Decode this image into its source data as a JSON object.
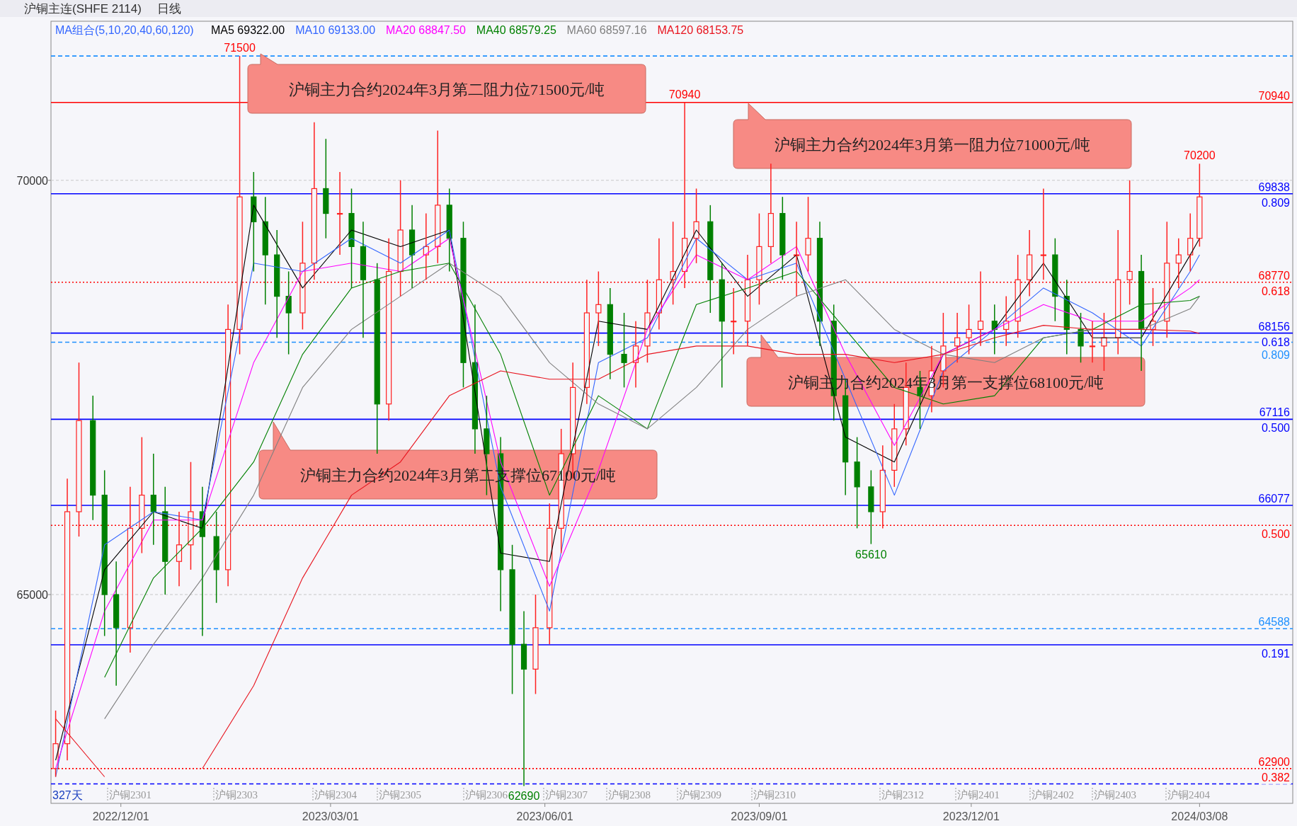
{
  "chart_data": {
    "type": "candlestick",
    "title": "沪铜主连(SHFE 2114)",
    "subtitle": "日线",
    "legend_title": "MA组合(5,10,20,40,60,120)",
    "legend": "top",
    "grid": "y",
    "xlim": [
      "2022-11-01",
      "2024-04-17"
    ],
    "ylim": [
      62480,
      71920
    ],
    "xticks": [
      {
        "value": "2022-12-01",
        "label": "2022/12/01"
      },
      {
        "value": "2023-03-01",
        "label": "2023/03/01"
      },
      {
        "value": "2023-06-01",
        "label": "2023/06/01"
      },
      {
        "value": "2023-09-01",
        "label": "2023/09/01"
      },
      {
        "value": "2023-12-01",
        "label": "2023/12/01"
      },
      {
        "value": "2024-03-08",
        "label": "2024/03/08"
      }
    ],
    "yticks": [
      65000,
      70000
    ],
    "x": [
      "2022-11-03",
      "2022-11-08",
      "2022-11-13",
      "2022-11-19",
      "2022-11-24",
      "2022-11-29",
      "2022-12-05",
      "2022-12-10",
      "2022-12-15",
      "2022-12-20",
      "2022-12-26",
      "2022-12-31",
      "2023-01-05",
      "2023-01-11",
      "2023-01-16",
      "2023-01-21",
      "2023-01-27",
      "2023-02-01",
      "2023-02-06",
      "2023-02-11",
      "2023-02-17",
      "2023-02-22",
      "2023-02-27",
      "2023-03-05",
      "2023-03-10",
      "2023-03-15",
      "2023-03-21",
      "2023-03-26",
      "2023-03-31",
      "2023-04-05",
      "2023-04-11",
      "2023-04-16",
      "2023-04-21",
      "2023-04-27",
      "2023-05-02",
      "2023-05-07",
      "2023-05-13",
      "2023-05-18",
      "2023-05-23",
      "2023-05-28",
      "2023-06-03",
      "2023-06-08",
      "2023-06-13",
      "2023-06-19",
      "2023-06-24",
      "2023-06-29",
      "2023-07-05",
      "2023-07-10",
      "2023-07-15",
      "2023-07-20",
      "2023-07-26",
      "2023-07-31",
      "2023-08-05",
      "2023-08-11",
      "2023-08-16",
      "2023-08-21",
      "2023-08-27",
      "2023-09-01",
      "2023-09-06",
      "2023-09-11",
      "2023-09-17",
      "2023-09-22",
      "2023-09-27",
      "2023-10-03",
      "2023-10-08",
      "2023-10-13",
      "2023-10-19",
      "2023-10-24",
      "2023-10-29",
      "2023-11-03",
      "2023-11-09",
      "2023-11-14",
      "2023-11-19",
      "2023-11-25",
      "2023-11-30",
      "2023-12-05",
      "2023-12-11",
      "2023-12-16",
      "2023-12-21",
      "2023-12-26",
      "2024-01-01",
      "2024-01-06",
      "2024-01-11",
      "2024-01-17",
      "2024-01-22",
      "2024-01-27",
      "2024-02-02",
      "2024-02-07",
      "2024-02-12",
      "2024-02-17",
      "2024-02-23",
      "2024-02-28",
      "2024-03-04",
      "2024-03-08"
    ],
    "ohlc": [
      [
        62900,
        63600,
        62800,
        63200
      ],
      [
        63200,
        66400,
        63000,
        66000
      ],
      [
        66000,
        67800,
        65700,
        67100
      ],
      [
        67100,
        67400,
        65900,
        66200
      ],
      [
        66200,
        66500,
        64500,
        65000
      ],
      [
        65000,
        65400,
        63900,
        64600
      ],
      [
        64600,
        66300,
        64300,
        65800
      ],
      [
        65800,
        66900,
        65500,
        66200
      ],
      [
        66200,
        66700,
        65600,
        66000
      ],
      [
        66000,
        66300,
        65000,
        65400
      ],
      [
        65400,
        66000,
        65100,
        65600
      ],
      [
        65600,
        66600,
        65300,
        66000
      ],
      [
        66000,
        66300,
        64500,
        65700
      ],
      [
        65700,
        66000,
        64900,
        65300
      ],
      [
        65300,
        68500,
        65100,
        68200
      ],
      [
        68200,
        71500,
        67900,
        69800
      ],
      [
        69800,
        70100,
        68900,
        69500
      ],
      [
        69500,
        69800,
        68500,
        69100
      ],
      [
        69100,
        69400,
        68100,
        68600
      ],
      [
        68600,
        68900,
        67900,
        68400
      ],
      [
        68400,
        69500,
        68200,
        69000
      ],
      [
        69000,
        70700,
        68800,
        69900
      ],
      [
        69900,
        70500,
        69300,
        69600
      ],
      [
        69600,
        70100,
        69100,
        69600
      ],
      [
        69600,
        69900,
        68700,
        69200
      ],
      [
        69200,
        69500,
        68100,
        68800
      ],
      [
        68800,
        69000,
        66700,
        67300
      ],
      [
        67300,
        69300,
        67100,
        68900
      ],
      [
        68900,
        70000,
        68600,
        69400
      ],
      [
        69400,
        69700,
        68700,
        69100
      ],
      [
        69100,
        69600,
        68800,
        69200
      ],
      [
        69200,
        70600,
        69000,
        69700
      ],
      [
        69700,
        69900,
        68900,
        69300
      ],
      [
        69300,
        69500,
        67500,
        67800
      ],
      [
        67800,
        68500,
        66700,
        67000
      ],
      [
        67000,
        67400,
        66200,
        66700
      ],
      [
        66700,
        66900,
        64800,
        65300
      ],
      [
        65300,
        65600,
        63800,
        64400
      ],
      [
        64400,
        64800,
        62690,
        64100
      ],
      [
        64100,
        65000,
        63800,
        64600
      ],
      [
        64600,
        66100,
        64400,
        65800
      ],
      [
        65800,
        67000,
        65500,
        66700
      ],
      [
        66700,
        67800,
        66400,
        67500
      ],
      [
        67500,
        68800,
        67300,
        68400
      ],
      [
        68400,
        68900,
        68000,
        68500
      ],
      [
        68500,
        68700,
        67600,
        67900
      ],
      [
        67900,
        68400,
        67500,
        67800
      ],
      [
        67800,
        68300,
        67500,
        68000
      ],
      [
        68000,
        68800,
        67800,
        68400
      ],
      [
        68400,
        69300,
        68200,
        68800
      ],
      [
        68800,
        69500,
        68500,
        68900
      ],
      [
        68900,
        70940,
        68700,
        69300
      ],
      [
        69300,
        69900,
        69000,
        69500
      ],
      [
        69500,
        69700,
        68400,
        68800
      ],
      [
        68800,
        69000,
        67500,
        68300
      ],
      [
        68300,
        68700,
        67900,
        68300
      ],
      [
        68300,
        69100,
        68000,
        68800
      ],
      [
        68800,
        69600,
        68500,
        69200
      ],
      [
        69200,
        70200,
        69000,
        69600
      ],
      [
        69600,
        69800,
        68800,
        69100
      ],
      [
        69100,
        69500,
        68600,
        69100
      ],
      [
        69100,
        69800,
        68900,
        69300
      ],
      [
        69300,
        69500,
        68000,
        68300
      ],
      [
        68300,
        68500,
        67100,
        67400
      ],
      [
        67400,
        67600,
        66200,
        66600
      ],
      [
        66600,
        66900,
        65800,
        66300
      ],
      [
        66300,
        66500,
        65610,
        66000
      ],
      [
        66000,
        66800,
        65800,
        66500
      ],
      [
        66500,
        67300,
        66300,
        67000
      ],
      [
        67000,
        67800,
        66800,
        67500
      ],
      [
        67500,
        67700,
        67000,
        67400
      ],
      [
        67400,
        68000,
        67200,
        67700
      ],
      [
        67700,
        68400,
        67500,
        68000
      ],
      [
        68000,
        68400,
        67800,
        68100
      ],
      [
        68100,
        68500,
        67900,
        68200
      ],
      [
        68200,
        68900,
        68000,
        68300
      ],
      [
        68300,
        68500,
        67900,
        68200
      ],
      [
        68200,
        68600,
        68000,
        68300
      ],
      [
        68300,
        69100,
        68100,
        68800
      ],
      [
        68800,
        69400,
        68600,
        69100
      ],
      [
        69100,
        69900,
        68800,
        69100
      ],
      [
        69100,
        69300,
        68300,
        68600
      ],
      [
        68600,
        68800,
        67900,
        68200
      ],
      [
        68200,
        68400,
        67800,
        68000
      ],
      [
        68000,
        68300,
        67800,
        68000
      ],
      [
        68000,
        68400,
        67700,
        68100
      ],
      [
        68100,
        69400,
        67900,
        68800
      ],
      [
        68800,
        70000,
        68500,
        68900
      ],
      [
        68900,
        69100,
        67700,
        68200
      ],
      [
        68200,
        68700,
        68000,
        68300
      ],
      [
        68300,
        69500,
        68100,
        69000
      ],
      [
        69000,
        69300,
        68700,
        69100
      ],
      [
        69100,
        69600,
        68900,
        69300
      ],
      [
        69300,
        70200,
        69200,
        69800
      ]
    ],
    "series": [
      {
        "type": "line",
        "name": "MA5 69322.00",
        "color": "#000000",
        "x": [
          "2022-11-03",
          "2022-11-24",
          "2022-12-15",
          "2023-01-05",
          "2023-01-27",
          "2023-02-17",
          "2023-03-10",
          "2023-03-31",
          "2023-04-21",
          "2023-05-13",
          "2023-06-03",
          "2023-06-24",
          "2023-07-15",
          "2023-08-05",
          "2023-08-27",
          "2023-09-17",
          "2023-10-08",
          "2023-10-29",
          "2023-11-19",
          "2023-12-11",
          "2024-01-01",
          "2024-01-22",
          "2024-02-12",
          "2024-03-04",
          "2024-03-08"
        ],
        "values": [
          63000,
          65300,
          66000,
          65800,
          69700,
          68700,
          69400,
          69200,
          69400,
          65500,
          65400,
          68300,
          68200,
          69400,
          68600,
          69100,
          66900,
          66600,
          67900,
          68200,
          69000,
          68100,
          68100,
          69100,
          69300
        ]
      },
      {
        "type": "line",
        "name": "MA10 69133.00",
        "color": "#3366ff",
        "x": [
          "2022-11-03",
          "2022-11-24",
          "2022-12-15",
          "2023-01-05",
          "2023-01-27",
          "2023-02-17",
          "2023-03-10",
          "2023-03-31",
          "2023-04-21",
          "2023-05-13",
          "2023-06-03",
          "2023-06-24",
          "2023-07-15",
          "2023-08-05",
          "2023-08-27",
          "2023-09-17",
          "2023-10-08",
          "2023-10-29",
          "2023-11-19",
          "2023-12-11",
          "2024-01-01",
          "2024-01-22",
          "2024-02-12",
          "2024-03-04",
          "2024-03-08"
        ],
        "values": [
          62800,
          65600,
          66000,
          65900,
          69000,
          68900,
          69300,
          69000,
          69400,
          66300,
          64800,
          67800,
          68100,
          69300,
          68800,
          69000,
          67600,
          66200,
          67700,
          68200,
          68700,
          68400,
          68000,
          68900,
          69100
        ]
      },
      {
        "type": "line",
        "name": "MA20 68847.50",
        "color": "#ff00ff",
        "x": [
          "2022-11-03",
          "2022-11-24",
          "2022-12-15",
          "2023-01-05",
          "2023-01-27",
          "2023-02-17",
          "2023-03-10",
          "2023-03-31",
          "2023-04-21",
          "2023-05-13",
          "2023-06-03",
          "2023-06-24",
          "2023-07-15",
          "2023-08-05",
          "2023-08-27",
          "2023-09-17",
          "2023-10-08",
          "2023-10-29",
          "2023-11-19",
          "2023-12-11",
          "2024-01-01",
          "2024-01-22",
          "2024-02-12",
          "2024-03-04",
          "2024-03-08"
        ],
        "values": [
          62900,
          64800,
          65900,
          65900,
          67800,
          68900,
          69000,
          68900,
          69300,
          66600,
          65100,
          66500,
          68200,
          69100,
          68800,
          69200,
          67900,
          66800,
          67900,
          68200,
          68500,
          68300,
          68300,
          68700,
          68800
        ]
      },
      {
        "type": "line",
        "name": "MA40 68579.25",
        "color": "#008000",
        "x": [
          "2022-11-24",
          "2022-12-15",
          "2023-01-05",
          "2023-01-27",
          "2023-02-17",
          "2023-03-10",
          "2023-03-31",
          "2023-04-21",
          "2023-05-13",
          "2023-06-03",
          "2023-06-24",
          "2023-07-15",
          "2023-08-05",
          "2023-08-27",
          "2023-09-17",
          "2023-10-08",
          "2023-10-29",
          "2023-11-19",
          "2023-12-11",
          "2024-01-01",
          "2024-01-22",
          "2024-02-12",
          "2024-03-04",
          "2024-03-08"
        ],
        "values": [
          64000,
          65200,
          65800,
          66600,
          67900,
          68700,
          68900,
          69000,
          67900,
          66200,
          67400,
          67000,
          68500,
          68700,
          68900,
          68200,
          67500,
          67300,
          67400,
          68100,
          68200,
          68500,
          68550,
          68600
        ]
      },
      {
        "type": "line",
        "name": "MA60 68597.16",
        "color": "#808080",
        "x": [
          "2022-11-24",
          "2022-12-15",
          "2023-01-05",
          "2023-01-27",
          "2023-02-17",
          "2023-03-10",
          "2023-03-31",
          "2023-04-21",
          "2023-05-13",
          "2023-06-03",
          "2023-06-24",
          "2023-07-15",
          "2023-08-05",
          "2023-08-27",
          "2023-09-17",
          "2023-10-08",
          "2023-10-29",
          "2023-11-19",
          "2023-12-11",
          "2024-01-01",
          "2024-01-22",
          "2024-02-12",
          "2024-03-04",
          "2024-03-08"
        ],
        "values": [
          63500,
          64400,
          65200,
          66200,
          67500,
          68200,
          68600,
          69000,
          68600,
          67800,
          67300,
          67000,
          67500,
          68200,
          68600,
          68800,
          68200,
          67900,
          67800,
          68100,
          68200,
          68200,
          68450,
          68600
        ]
      },
      {
        "type": "line",
        "name": "MA120 68153.75",
        "color": "#e8141e",
        "x": [
          "2022-11-03",
          "2022-11-24",
          "2022-12-15",
          "2023-01-05",
          "2023-01-27",
          "2023-02-17",
          "2023-03-10",
          "2023-03-31",
          "2023-04-21",
          "2023-05-13",
          "2023-06-03",
          "2023-06-24",
          "2023-07-15",
          "2023-08-05",
          "2023-08-27",
          "2023-09-17",
          "2023-10-08",
          "2023-10-29",
          "2023-11-19",
          "2023-12-11",
          "2024-01-01",
          "2024-01-22",
          "2024-02-12",
          "2024-03-04",
          "2024-03-08"
        ],
        "values": [
          63500,
          62800,
          null,
          62900,
          63900,
          65200,
          66200,
          66600,
          67400,
          67700,
          67600,
          67600,
          67900,
          68000,
          68000,
          67900,
          67900,
          67800,
          67900,
          68100,
          68250,
          68200,
          68200,
          68180,
          68150
        ]
      }
    ],
    "ref_lines": [
      {
        "axis": "y",
        "value": 71500,
        "color": "#1e90ff",
        "line_style": "dashed"
      },
      {
        "axis": "y",
        "value": 70940,
        "label": "70940",
        "color": "#ff0000",
        "line_style": "solid"
      },
      {
        "axis": "y",
        "value": 69838,
        "label": "69838",
        "color": "#0000ff",
        "line_style": "solid"
      },
      {
        "axis": "y",
        "value": 68770,
        "label": "68770",
        "color": "#ff0000",
        "line_style": "dotted"
      },
      {
        "axis": "y",
        "value": 68156,
        "label": "68156",
        "color": "#0000ff",
        "line_style": "solid"
      },
      {
        "axis": "y",
        "value": 68046,
        "color": "#1e90ff",
        "line_style": "dashed"
      },
      {
        "axis": "y",
        "value": 67116,
        "label": "67116",
        "color": "#0000ff",
        "line_style": "solid"
      },
      {
        "axis": "y",
        "value": 66077,
        "label": "66077",
        "color": "#0000ff",
        "line_style": "solid"
      },
      {
        "axis": "y",
        "value": 65835,
        "color": "#ff0000",
        "line_style": "dotted"
      },
      {
        "axis": "y",
        "value": 64588,
        "label": "64588",
        "color": "#1e90ff",
        "line_style": "dashed"
      },
      {
        "axis": "y",
        "value": 64394,
        "color": "#0000ff",
        "line_style": "solid"
      },
      {
        "axis": "y",
        "value": 62900,
        "label": "62900",
        "color": "#ff0000",
        "line_style": "dotted"
      },
      {
        "axis": "y",
        "value": 62715,
        "color": "#0000ff",
        "line_style": "dashed"
      }
    ],
    "annotations": [
      "沪铜主力合约2024年3月第二阻力位71500元/吨",
      "沪铜主力合约2024年3月第一阻力位71000元/吨",
      "沪铜主力合约2024年3月第一支撑位68100元/吨",
      "沪铜主力合约2024年3月第二支撑位67100元/吨",
      "327天",
      {
        "text": "71500",
        "x": "2023-01-21",
        "y": 71500
      },
      {
        "text": "70940",
        "x": "2023-07-31",
        "y": 70940
      },
      {
        "text": "70200",
        "x": "2024-03-08",
        "y": 70200
      },
      {
        "text": "65610",
        "x": "2023-10-19",
        "y": 65610
      },
      {
        "text": "62690",
        "x": "2023-05-23",
        "y": 62690
      },
      {
        "text": "0.809",
        "x": "2024-04-17",
        "y": 69838
      },
      {
        "text": "0.618",
        "x": "2024-04-17",
        "y": 68770
      },
      {
        "text": "0.618",
        "x": "2024-04-17",
        "y": 68156
      },
      {
        "text": "0.809",
        "x": "2024-04-17",
        "y": 68046
      },
      {
        "text": "0.500",
        "x": "2024-04-17",
        "y": 67116
      },
      {
        "text": "0.500",
        "x": "2024-04-17",
        "y": 65835
      },
      {
        "text": "0.191",
        "x": "2024-04-17",
        "y": 64394
      },
      {
        "text": "0.382",
        "x": "2024-04-17",
        "y": 62900
      },
      "沪铜2301",
      "沪铜2303",
      "沪铜2304",
      "沪铜2305",
      "沪铜2306",
      "沪铜2307",
      "沪铜2308",
      "沪铜2309",
      "沪铜2310",
      "沪铜2312",
      "沪铜2401",
      "沪铜2402",
      "沪铜2403",
      "沪铜2404"
    ]
  }
}
